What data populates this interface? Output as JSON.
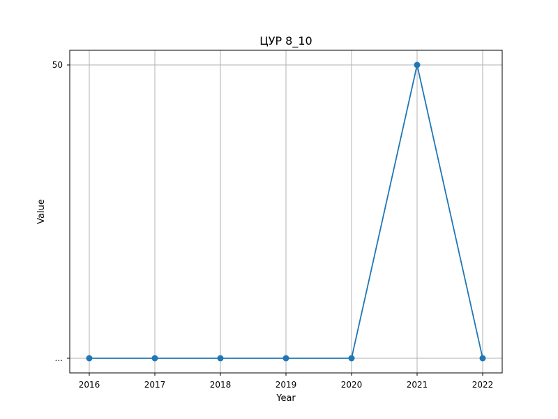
{
  "chart_data": {
    "type": "line",
    "title": "ЦУР 8_10",
    "xlabel": "Year",
    "ylabel": "Value",
    "x": [
      2016,
      2017,
      2018,
      2019,
      2020,
      2021,
      2022
    ],
    "y_categories": [
      "...",
      "50"
    ],
    "series": [
      {
        "values": [
          "...",
          "...",
          "...",
          "...",
          "...",
          "50",
          "..."
        ],
        "color": "#1f77b4",
        "marker": "circle"
      }
    ],
    "x_ticks": [
      "2016",
      "2017",
      "2018",
      "2019",
      "2020",
      "2021",
      "2022"
    ],
    "y_ticks": [
      "...",
      "50"
    ],
    "grid": true,
    "legend": "none"
  }
}
